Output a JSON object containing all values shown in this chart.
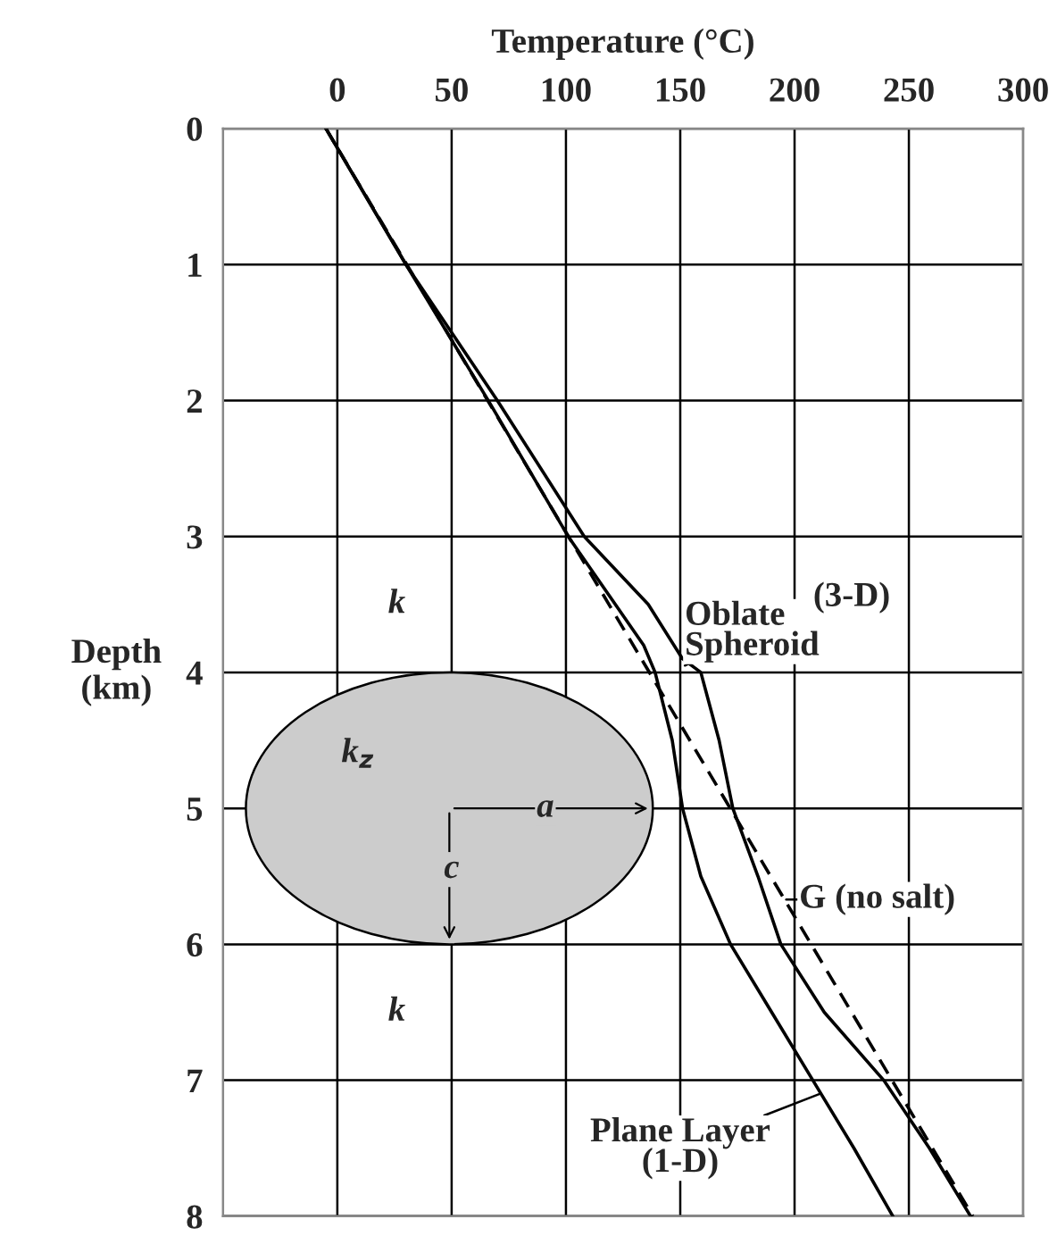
{
  "chart_data": {
    "type": "line",
    "xlabel": "Temperature (°C)",
    "ylabel": "Depth\n(km)",
    "xlim": [
      -50,
      300
    ],
    "xticks": [
      0,
      50,
      100,
      150,
      200,
      250,
      300
    ],
    "ylim": [
      8,
      0
    ],
    "yticks": [
      0,
      1,
      2,
      3,
      4,
      5,
      6,
      7,
      8
    ],
    "grid": true,
    "series": [
      {
        "name": "Oblate\nSpheroid",
        "color": "#000000",
        "line_style": "solid",
        "x": [
          -5,
          30,
          70,
          108,
          136,
          151,
          159,
          167,
          173,
          184,
          194,
          213,
          239,
          259,
          277
        ],
        "values": [
          0,
          1,
          2,
          3,
          3.5,
          3.9,
          4,
          4.5,
          5,
          5.5,
          6,
          6.5,
          7,
          7.5,
          8
        ]
      },
      {
        "name": "G (no salt)",
        "color": "#000000",
        "line_style": "dashed",
        "x": [
          -5,
          278
        ],
        "values": [
          0,
          8
        ]
      },
      {
        "name": "Plane Layer\n(1-D)",
        "color": "#000000",
        "line_style": "solid",
        "x": [
          -5,
          30,
          66,
          101,
          134,
          139,
          146.5,
          151,
          159,
          172,
          190,
          208,
          226,
          243
        ],
        "values": [
          0,
          1,
          2,
          3,
          3.8,
          4,
          4.5,
          5,
          5.5,
          6,
          6.5,
          7,
          7.5,
          8
        ]
      }
    ],
    "annotations": [
      "k",
      "k$_{z}$",
      "a",
      "c",
      "k",
      "(3-D)"
    ]
  }
}
